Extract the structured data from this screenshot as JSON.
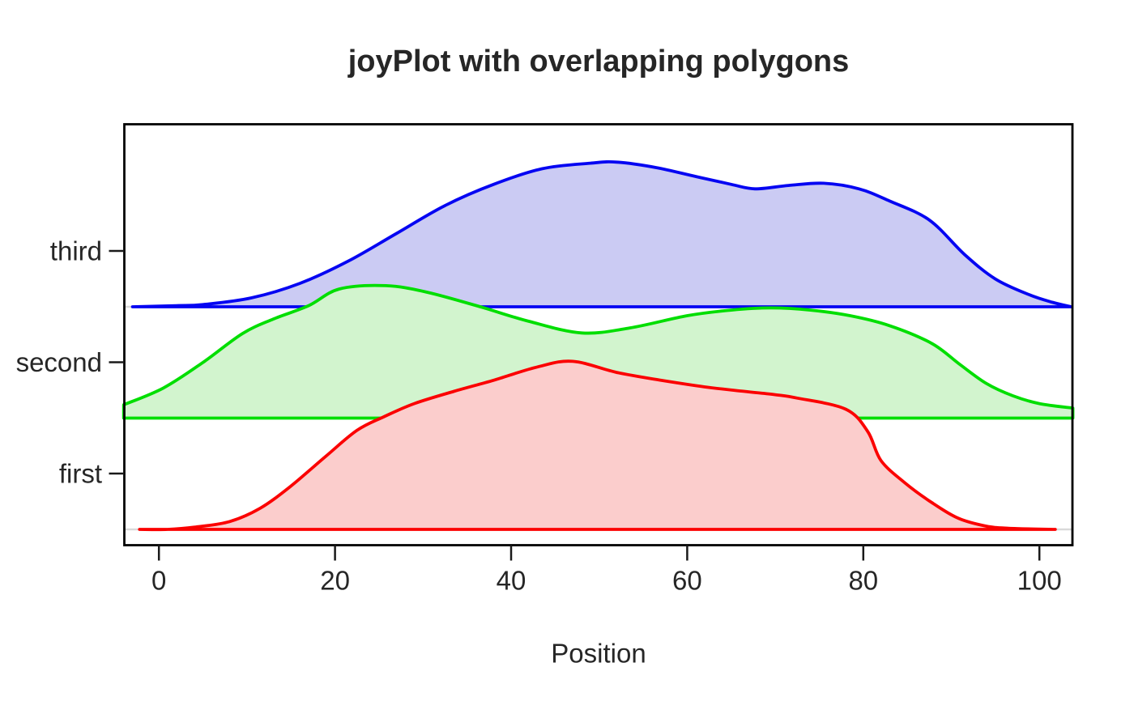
{
  "page": {
    "background": "#FFFFFF",
    "text_color": "#262626"
  },
  "chart_data": {
    "type": "area",
    "variant": "joyplot-ridgeline",
    "title": "joyPlot with overlapping polygons",
    "xlabel": "Position",
    "ylabel": "",
    "x_ticks": [
      0,
      20,
      40,
      60,
      80,
      100
    ],
    "x_range": [
      -4,
      103.8
    ],
    "grid": false,
    "legend": "none",
    "categories": [
      "first",
      "second",
      "third"
    ],
    "box_color": "#000000",
    "row_axis_color": "#D9D9D9",
    "height_unit": "fraction_of_row_spacing",
    "series": [
      {
        "name": "first",
        "row": 0,
        "stroke": "#FB0000",
        "fill": "#FBCDCC",
        "points": [
          [
            -2.2,
            0
          ],
          [
            1,
            0
          ],
          [
            4,
            0.02
          ],
          [
            8,
            0.07
          ],
          [
            11.5,
            0.19
          ],
          [
            15,
            0.39
          ],
          [
            19,
            0.66
          ],
          [
            22.5,
            0.89
          ],
          [
            25.5,
            1.01
          ],
          [
            29,
            1.13
          ],
          [
            33.5,
            1.24
          ],
          [
            38,
            1.34
          ],
          [
            43,
            1.46
          ],
          [
            47,
            1.51
          ],
          [
            52,
            1.41
          ],
          [
            57,
            1.34
          ],
          [
            62,
            1.28
          ],
          [
            66.5,
            1.24
          ],
          [
            70,
            1.21
          ],
          [
            72.5,
            1.18
          ],
          [
            78,
            1.08
          ],
          [
            80.5,
            0.88
          ],
          [
            82,
            0.62
          ],
          [
            84.7,
            0.42
          ],
          [
            87.8,
            0.24
          ],
          [
            90.8,
            0.1
          ],
          [
            93.9,
            0.03
          ],
          [
            96.5,
            0.01
          ],
          [
            101.8,
            0
          ]
        ]
      },
      {
        "name": "second",
        "row": 1,
        "stroke": "#00DE00",
        "fill": "#D2F4CE",
        "points": [
          [
            -4,
            0.12
          ],
          [
            0.5,
            0.27
          ],
          [
            5,
            0.5
          ],
          [
            9.5,
            0.76
          ],
          [
            13,
            0.89
          ],
          [
            17,
            1.01
          ],
          [
            20.5,
            1.16
          ],
          [
            25.8,
            1.19
          ],
          [
            30.5,
            1.13
          ],
          [
            36.5,
            1.0
          ],
          [
            42,
            0.87
          ],
          [
            48,
            0.765
          ],
          [
            53.5,
            0.81
          ],
          [
            60,
            0.92
          ],
          [
            65,
            0.97
          ],
          [
            69.5,
            0.99
          ],
          [
            74,
            0.97
          ],
          [
            78.5,
            0.92
          ],
          [
            83,
            0.83
          ],
          [
            87.8,
            0.67
          ],
          [
            91,
            0.48
          ],
          [
            94,
            0.31
          ],
          [
            97,
            0.2
          ],
          [
            100,
            0.13
          ],
          [
            103.8,
            0.09
          ]
        ]
      },
      {
        "name": "third",
        "row": 2,
        "stroke": "#0505F2",
        "fill": "#CBCBF3",
        "points": [
          [
            -3,
            0
          ],
          [
            2,
            0.01
          ],
          [
            5,
            0.02
          ],
          [
            10.5,
            0.08
          ],
          [
            16,
            0.21
          ],
          [
            21.5,
            0.41
          ],
          [
            27,
            0.66
          ],
          [
            32.5,
            0.91
          ],
          [
            38,
            1.1
          ],
          [
            43.5,
            1.24
          ],
          [
            49,
            1.29
          ],
          [
            52,
            1.3
          ],
          [
            56.5,
            1.25
          ],
          [
            61,
            1.17
          ],
          [
            65,
            1.1
          ],
          [
            67.7,
            1.06
          ],
          [
            71.5,
            1.09
          ],
          [
            75.5,
            1.11
          ],
          [
            79.5,
            1.06
          ],
          [
            83,
            0.95
          ],
          [
            87.5,
            0.78
          ],
          [
            91.5,
            0.47
          ],
          [
            95,
            0.25
          ],
          [
            98.8,
            0.11
          ],
          [
            101.5,
            0.04
          ],
          [
            103.6,
            0
          ]
        ]
      }
    ]
  }
}
